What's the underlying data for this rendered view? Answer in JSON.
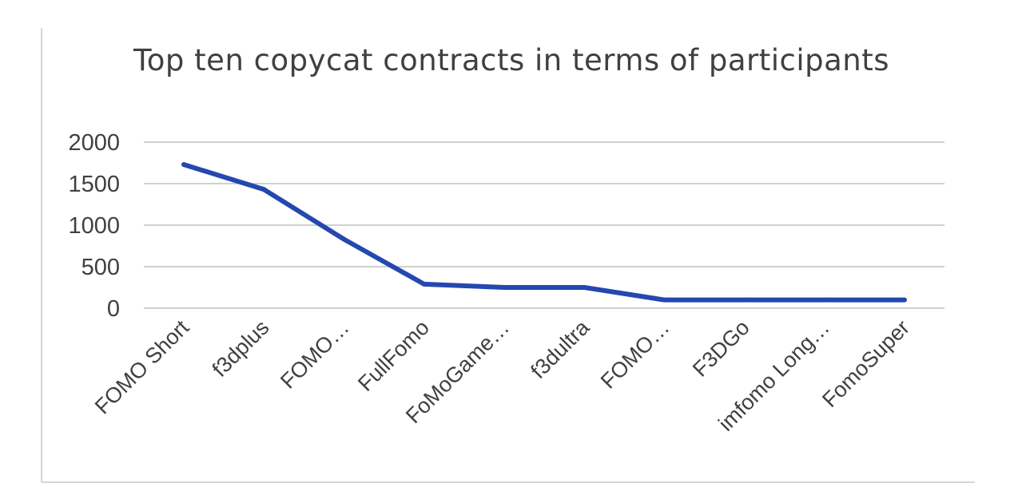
{
  "chart_data": {
    "type": "line",
    "title": "Top ten copycat contracts in terms of participants",
    "categories": [
      "FOMO Short",
      "f3dplus",
      "FOMO…",
      "FullFomo",
      "FoMoGame…",
      "f3dultra",
      "FOMO…",
      "F3DGo",
      "imfomo Long…",
      "FomoSuper"
    ],
    "series": [
      {
        "values": [
          1730,
          1430,
          830,
          290,
          250,
          250,
          100,
          100,
          100,
          100
        ]
      }
    ],
    "yticks": [
      "0",
      "500",
      "1000",
      "1500",
      "2000"
    ],
    "ylim": [
      0,
      2000
    ],
    "grid": true,
    "xlabel": "",
    "ylabel": "",
    "line_color": "#2448b0"
  }
}
